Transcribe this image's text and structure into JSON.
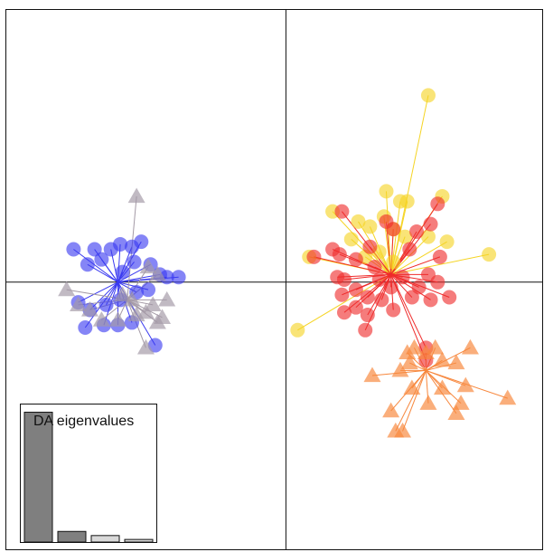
{
  "chart_data": {
    "type": "scatter",
    "title": "",
    "xlabel": "",
    "ylabel": "",
    "xlim": [
      -6.0,
      5.5
    ],
    "ylim": [
      -5.3,
      5.4
    ],
    "grid": false,
    "axes": "cross-at-origin",
    "legend": "none",
    "colors": {
      "blue": "#3a3af0",
      "grey": "#a49aa6",
      "yellow": "#f5d423",
      "red": "#ef2b2b",
      "orange": "#f7873d"
    },
    "series": [
      {
        "marker": "circle",
        "color": "#3a3af0",
        "centroid": [
          -3.6,
          0.0
        ],
        "points": [
          [
            -4.55,
            0.65
          ],
          [
            -4.25,
            0.35
          ],
          [
            -4.1,
            0.65
          ],
          [
            -3.95,
            0.45
          ],
          [
            -3.75,
            0.65
          ],
          [
            -3.55,
            0.75
          ],
          [
            -3.3,
            0.7
          ],
          [
            -3.1,
            0.8
          ],
          [
            -3.25,
            0.4
          ],
          [
            -3.5,
            0.2
          ],
          [
            -2.9,
            0.35
          ],
          [
            -2.7,
            0.15
          ],
          [
            -2.55,
            0.1
          ],
          [
            -2.3,
            0.1
          ],
          [
            -2.95,
            -0.15
          ],
          [
            -3.2,
            -0.2
          ],
          [
            -3.55,
            -0.35
          ],
          [
            -3.85,
            -0.45
          ],
          [
            -4.2,
            -0.55
          ],
          [
            -4.45,
            -0.4
          ],
          [
            -4.3,
            -0.9
          ],
          [
            -3.9,
            -0.85
          ],
          [
            -3.6,
            -0.85
          ],
          [
            -3.3,
            -0.8
          ],
          [
            -2.8,
            -1.25
          ]
        ]
      },
      {
        "marker": "triangle",
        "color": "#a49aa6",
        "centroid": [
          -3.4,
          -0.35
        ],
        "points": [
          [
            -3.2,
            1.7
          ],
          [
            -4.7,
            -0.15
          ],
          [
            -4.45,
            -0.45
          ],
          [
            -4.2,
            -0.55
          ],
          [
            -3.95,
            -0.75
          ],
          [
            -3.6,
            -0.75
          ],
          [
            -3.3,
            -0.35
          ],
          [
            -3.2,
            -0.65
          ],
          [
            -3.0,
            -0.6
          ],
          [
            -2.85,
            -0.45
          ],
          [
            -2.75,
            -0.8
          ],
          [
            -2.65,
            -0.7
          ],
          [
            -2.55,
            -0.35
          ],
          [
            -2.75,
            0.15
          ],
          [
            -2.95,
            0.3
          ],
          [
            -3.0,
            -1.3
          ],
          [
            -3.5,
            -0.25
          ]
        ]
      },
      {
        "marker": "circle",
        "color": "#f5d423",
        "centroid": [
          2.25,
          0.15
        ],
        "points": [
          [
            3.05,
            3.7
          ],
          [
            2.15,
            1.8
          ],
          [
            3.35,
            1.7
          ],
          [
            1.0,
            1.4
          ],
          [
            1.55,
            1.2
          ],
          [
            1.8,
            1.1
          ],
          [
            2.1,
            1.3
          ],
          [
            2.45,
            1.6
          ],
          [
            2.6,
            1.6
          ],
          [
            2.3,
            1.05
          ],
          [
            2.55,
            0.9
          ],
          [
            3.05,
            0.9
          ],
          [
            3.45,
            0.8
          ],
          [
            4.35,
            0.55
          ],
          [
            1.4,
            0.85
          ],
          [
            1.7,
            0.5
          ],
          [
            2.0,
            0.6
          ],
          [
            2.3,
            0.4
          ],
          [
            0.5,
            0.5
          ],
          [
            0.25,
            -0.95
          ]
        ]
      },
      {
        "marker": "circle",
        "color": "#ef2b2b",
        "centroid": [
          2.25,
          0.15
        ],
        "points": [
          [
            3.25,
            1.55
          ],
          [
            1.2,
            1.4
          ],
          [
            3.1,
            1.15
          ],
          [
            2.15,
            1.2
          ],
          [
            2.3,
            1.05
          ],
          [
            2.8,
            1.0
          ],
          [
            1.0,
            0.65
          ],
          [
            1.8,
            0.7
          ],
          [
            2.65,
            0.65
          ],
          [
            3.3,
            0.5
          ],
          [
            1.15,
            0.55
          ],
          [
            0.6,
            0.5
          ],
          [
            1.5,
            0.45
          ],
          [
            1.9,
            0.3
          ],
          [
            1.1,
            0.1
          ],
          [
            1.25,
            0.05
          ],
          [
            2.0,
            0.05
          ],
          [
            2.5,
            0.1
          ],
          [
            3.05,
            0.15
          ],
          [
            3.25,
            0.0
          ],
          [
            1.5,
            -0.15
          ],
          [
            2.25,
            -0.1
          ],
          [
            2.85,
            -0.1
          ],
          [
            1.2,
            -0.25
          ],
          [
            2.05,
            -0.35
          ],
          [
            3.1,
            -0.35
          ],
          [
            1.25,
            -0.6
          ],
          [
            1.75,
            -0.65
          ],
          [
            2.3,
            -0.55
          ],
          [
            3.5,
            -0.3
          ],
          [
            1.7,
            -0.95
          ],
          [
            2.7,
            -0.3
          ],
          [
            3.0,
            -1.3
          ],
          [
            3.0,
            -1.55
          ],
          [
            1.5,
            -0.5
          ],
          [
            1.75,
            -0.3
          ]
        ]
      },
      {
        "marker": "triangle",
        "color": "#f7873d",
        "centroid": [
          3.0,
          -1.75
        ],
        "points": [
          [
            2.6,
            -1.4
          ],
          [
            2.75,
            -1.3
          ],
          [
            3.2,
            -1.3
          ],
          [
            3.95,
            -1.3
          ],
          [
            2.65,
            -1.6
          ],
          [
            3.0,
            -1.4
          ],
          [
            3.35,
            -1.55
          ],
          [
            3.65,
            -1.6
          ],
          [
            1.85,
            -1.85
          ],
          [
            2.45,
            -1.75
          ],
          [
            2.7,
            -2.1
          ],
          [
            3.35,
            -2.1
          ],
          [
            3.85,
            -2.05
          ],
          [
            4.75,
            -2.3
          ],
          [
            3.75,
            -2.4
          ],
          [
            3.05,
            -2.4
          ],
          [
            2.25,
            -2.55
          ],
          [
            2.5,
            -2.95
          ],
          [
            3.65,
            -2.6
          ],
          [
            2.35,
            -2.95
          ]
        ]
      }
    ],
    "inset": {
      "type": "bar",
      "title": "DA eigenvalues",
      "values": [
        11.0,
        0.9,
        0.55,
        0.22
      ],
      "ylim": [
        0,
        11.5
      ],
      "colors": [
        "#7f7f7f",
        "#7f7f7f",
        "#d9d9d9",
        "#d9d9d9"
      ]
    }
  }
}
